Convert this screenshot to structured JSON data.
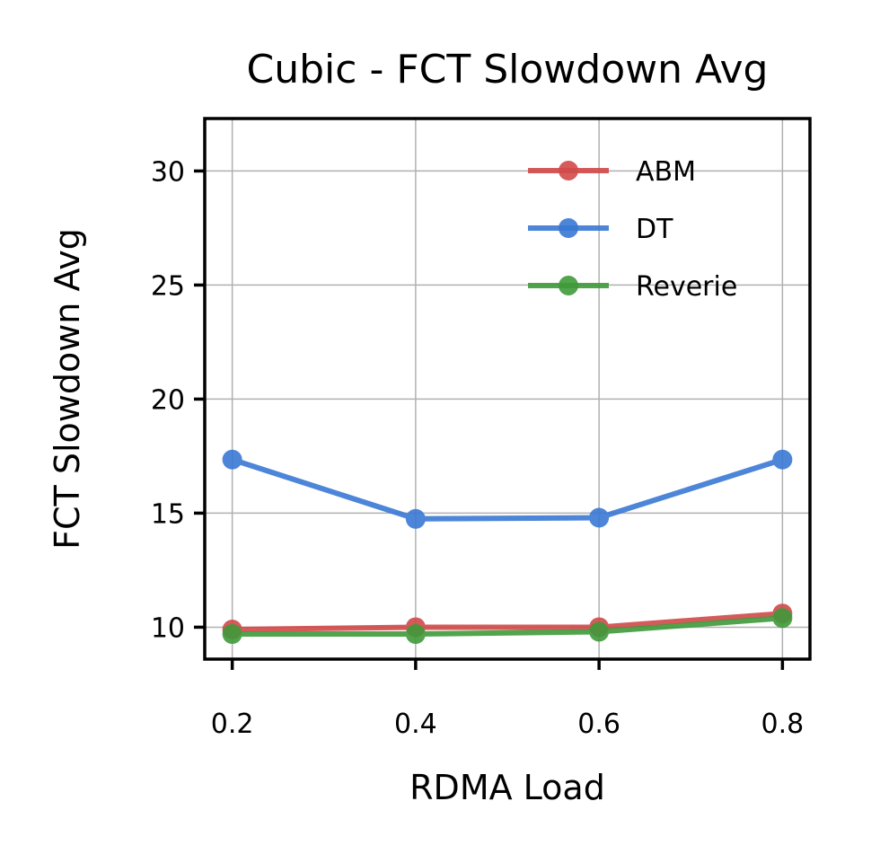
{
  "chart_data": {
    "type": "line",
    "title": "Cubic - FCT Slowdown Avg",
    "xlabel": "RDMA Load",
    "ylabel": "FCT Slowdown Avg",
    "x": [
      0.2,
      0.4,
      0.6,
      0.8
    ],
    "x_tick_labels": [
      "0.2",
      "0.4",
      "0.6",
      "0.8"
    ],
    "y_ticks": [
      10,
      15,
      20,
      25,
      30
    ],
    "y_tick_labels": [
      "10",
      "15",
      "20",
      "25",
      "30"
    ],
    "xlim": [
      0.17,
      0.83
    ],
    "ylim": [
      8.6,
      32.3
    ],
    "grid": true,
    "legend_position": "top-right",
    "series": [
      {
        "name": "ABM",
        "color": "#d14a4a",
        "values": [
          9.9,
          10.0,
          10.0,
          10.6
        ]
      },
      {
        "name": "DT",
        "color": "#3a78d4",
        "values": [
          17.35,
          14.75,
          14.8,
          17.35
        ]
      },
      {
        "name": "Reverie",
        "color": "#3f9a3a",
        "values": [
          9.7,
          9.7,
          9.8,
          10.4
        ]
      }
    ]
  }
}
